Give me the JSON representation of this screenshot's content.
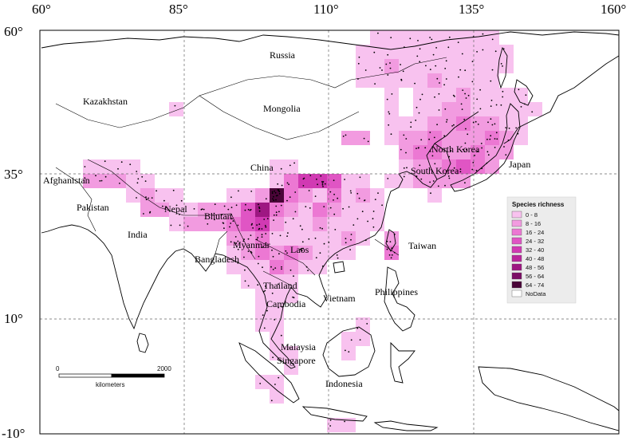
{
  "axes": {
    "lon_labels": [
      "60°",
      "85°",
      "110°",
      "135°",
      "160°"
    ],
    "lat_labels": [
      "60°",
      "35°",
      "10°",
      "-10°"
    ]
  },
  "countries": [
    {
      "key": "russia",
      "name": "Russia"
    },
    {
      "key": "kazakhstan",
      "name": "Kazakhstan"
    },
    {
      "key": "mongolia",
      "name": "Mongolia"
    },
    {
      "key": "china",
      "name": "China"
    },
    {
      "key": "north_korea",
      "name": "North Korea"
    },
    {
      "key": "south_korea",
      "name": "South Korea"
    },
    {
      "key": "japan",
      "name": "Japan"
    },
    {
      "key": "afghanistan",
      "name": "Afghanistan"
    },
    {
      "key": "pakistan",
      "name": "Pakistan"
    },
    {
      "key": "nepal",
      "name": "Nepal"
    },
    {
      "key": "bhutan",
      "name": "Bhutan"
    },
    {
      "key": "india",
      "name": "India"
    },
    {
      "key": "myanmar",
      "name": "Myanmar"
    },
    {
      "key": "bangladesh",
      "name": "Bangladesh"
    },
    {
      "key": "laos",
      "name": "Laos"
    },
    {
      "key": "taiwan",
      "name": "Taiwan"
    },
    {
      "key": "thailand",
      "name": "Thailand"
    },
    {
      "key": "cambodia",
      "name": "Cambodia"
    },
    {
      "key": "vietnam",
      "name": "Vietnam"
    },
    {
      "key": "philippines",
      "name": "Philippines"
    },
    {
      "key": "malaysia",
      "name": "Malaysia"
    },
    {
      "key": "singapore",
      "name": "Singapore"
    },
    {
      "key": "indonesia",
      "name": "Indonesia"
    }
  ],
  "legend": {
    "title": "Species richness",
    "classes": [
      {
        "label": "0 - 8",
        "color": "#f8c2ef"
      },
      {
        "label": "8 - 16",
        "color": "#f29be0"
      },
      {
        "label": "16 - 24",
        "color": "#ec78d3"
      },
      {
        "label": "24 - 32",
        "color": "#e055c4"
      },
      {
        "label": "32 - 40",
        "color": "#d13ab3"
      },
      {
        "label": "40 - 48",
        "color": "#bb269d"
      },
      {
        "label": "48 - 56",
        "color": "#9e1782"
      },
      {
        "label": "56 - 64",
        "color": "#7c0e66"
      },
      {
        "label": "64 - 74",
        "color": "#4a0538"
      },
      {
        "label": "NoData",
        "color": "#ffffff"
      }
    ]
  },
  "scale_bar": {
    "start_label": "0",
    "end_label": "2000",
    "unit_label": "kilometers"
  }
}
